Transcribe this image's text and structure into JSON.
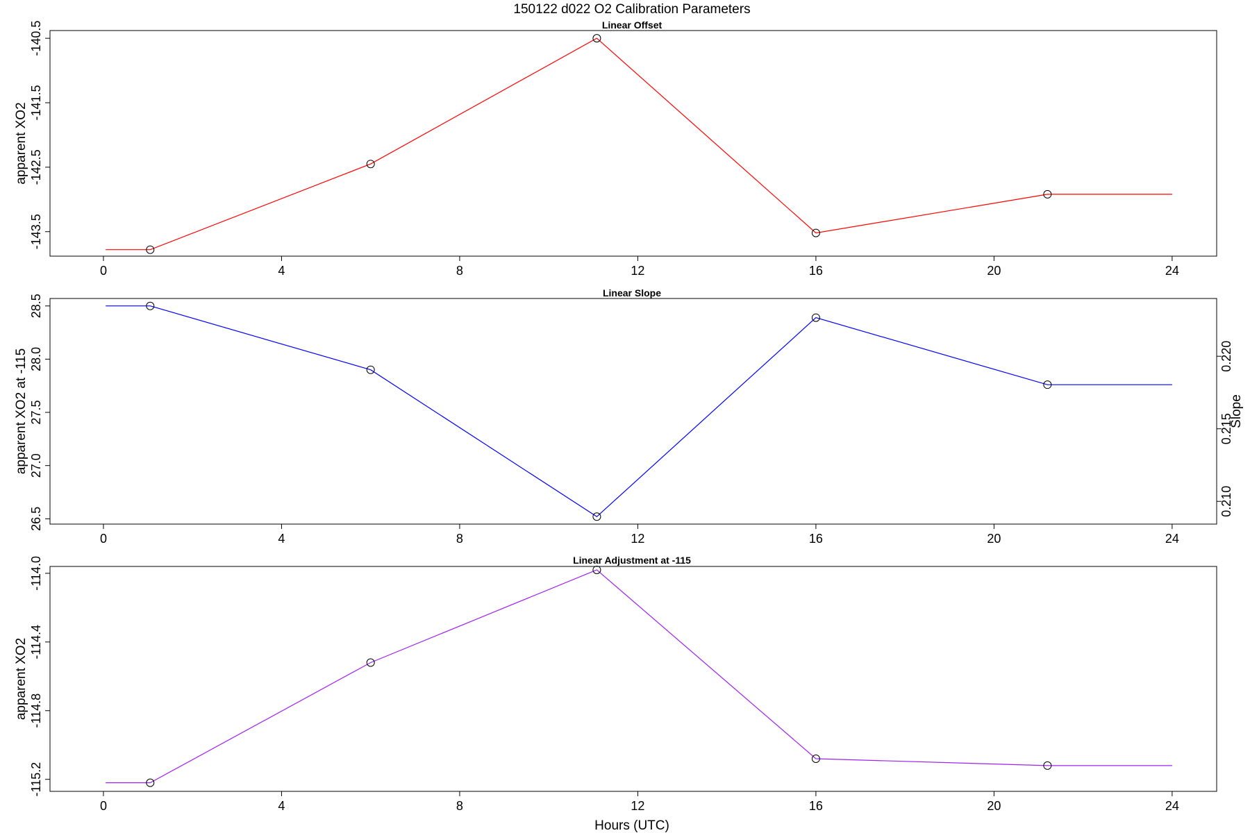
{
  "title": "150122   d022   O2 Calibration Parameters",
  "chart_data": [
    {
      "type": "line",
      "title": "Linear Offset",
      "xlabel": "",
      "ylabel": "apparent XO2",
      "color": "#ff0000",
      "xlim": [
        -1.2,
        25
      ],
      "ylim": [
        -143.88,
        -140.38
      ],
      "xticks": [
        0,
        4,
        8,
        12,
        16,
        20,
        24
      ],
      "yticks": [
        -143.5,
        -142.5,
        -141.5,
        -140.5
      ],
      "ytick_labels": [
        "-143.5",
        "-142.5",
        "-141.5",
        "-140.5"
      ],
      "line_x": [
        0.05,
        1.05,
        6.0,
        11.08,
        16.0,
        21.2,
        24.0
      ],
      "line_y": [
        -143.78,
        -143.78,
        -142.45,
        -140.5,
        -143.52,
        -142.92,
        -142.92
      ],
      "points_x": [
        1.05,
        6.0,
        11.08,
        16.0,
        21.2
      ],
      "points_y": [
        -143.78,
        -142.45,
        -140.5,
        -143.52,
        -142.92
      ]
    },
    {
      "type": "line",
      "title": "Linear Slope",
      "xlabel": "",
      "ylabel": "apparent XO2 at -115",
      "y2label": "Slope",
      "color": "#0000ff",
      "xlim": [
        -1.2,
        25
      ],
      "ylim": [
        26.45,
        28.57
      ],
      "xticks": [
        0,
        4,
        8,
        12,
        16,
        20,
        24
      ],
      "yticks": [
        26.5,
        27.0,
        27.5,
        28.0,
        28.5
      ],
      "ytick_labels": [
        "26.5",
        "27.0",
        "27.5",
        "28.0",
        "28.5"
      ],
      "y2ticks": [
        0.21,
        0.215,
        0.22
      ],
      "y2tick_labels": [
        "0.210",
        "0.215",
        "0.220"
      ],
      "y2_mapping": {
        "y1_at": [
          26.5,
          28.0
        ],
        "y2_at": [
          0.2088,
          0.2198
        ]
      },
      "line_x": [
        0.05,
        1.05,
        6.0,
        11.08,
        16.0,
        21.2,
        24.0
      ],
      "line_y": [
        28.5,
        28.5,
        27.9,
        26.52,
        28.39,
        27.76,
        27.76
      ],
      "points_x": [
        1.05,
        6.0,
        11.08,
        16.0,
        21.2
      ],
      "points_y": [
        28.5,
        27.9,
        26.52,
        28.39,
        27.76
      ]
    },
    {
      "type": "line",
      "title": "Linear Adjustment at -115",
      "xlabel": "Hours (UTC)",
      "ylabel": "apparent XO2",
      "color": "#a020f0",
      "xlim": [
        -1.2,
        25
      ],
      "ylim": [
        -115.27,
        -113.96
      ],
      "xticks": [
        0,
        4,
        8,
        12,
        16,
        20,
        24
      ],
      "yticks": [
        -115.2,
        -114.8,
        -114.4,
        -114.0
      ],
      "ytick_labels": [
        "-115.2",
        "-114.8",
        "-114.4",
        "-114.0"
      ],
      "line_x": [
        0.05,
        1.05,
        6.0,
        11.08,
        16.0,
        21.2,
        24.0
      ],
      "line_y": [
        -115.22,
        -115.22,
        -114.52,
        -113.98,
        -115.08,
        -115.12,
        -115.12
      ],
      "points_x": [
        1.05,
        6.0,
        11.08,
        16.0,
        21.2
      ],
      "points_y": [
        -115.22,
        -114.52,
        -113.98,
        -115.08,
        -115.12
      ]
    }
  ]
}
